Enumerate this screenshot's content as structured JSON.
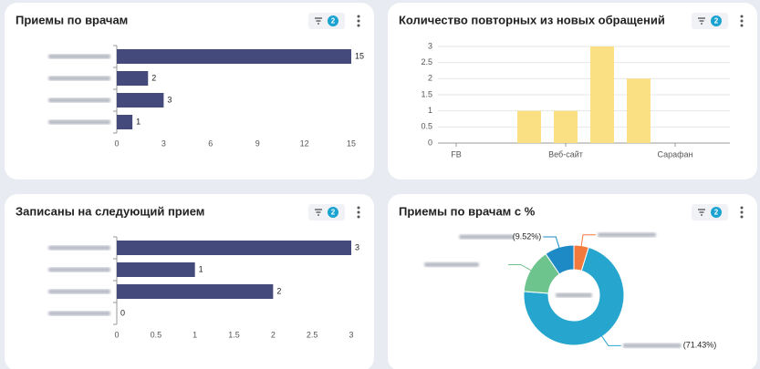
{
  "chart_data": [
    {
      "type": "bar",
      "orientation": "horizontal",
      "title": "Приемы по врачам",
      "filter_count": 2,
      "categories": [
        null,
        null,
        null,
        null
      ],
      "values": [
        15,
        2,
        3,
        1
      ],
      "color": "#454a7c",
      "xlim": [
        0,
        15
      ],
      "xticks": [
        0,
        3,
        6,
        9,
        12,
        15
      ],
      "grid": false
    },
    {
      "type": "bar",
      "orientation": "vertical",
      "title": "Количество повторных из новых обращений",
      "filter_count": 2,
      "categories": [
        "FB",
        null,
        null,
        "Веб-сайт",
        null,
        null,
        "Сарафан",
        null
      ],
      "values": [
        0,
        0,
        1,
        1,
        3,
        2,
        0,
        0
      ],
      "color": "#fbe083",
      "ylim": [
        0,
        3
      ],
      "yticks": [
        0,
        0.5,
        1,
        1.5,
        2,
        2.5,
        3
      ],
      "grid": true
    },
    {
      "type": "bar",
      "orientation": "horizontal",
      "title": "Записаны на следующий прием",
      "filter_count": 2,
      "categories": [
        null,
        null,
        null,
        null
      ],
      "values": [
        3,
        1,
        2,
        0
      ],
      "color": "#454a7c",
      "xlim": [
        0,
        3
      ],
      "xticks": [
        0,
        0.5,
        1,
        1.5,
        2,
        2.5,
        3
      ],
      "grid": false
    },
    {
      "type": "pie",
      "title": "Приемы по врачам с %",
      "filter_count": 2,
      "categories": [
        null,
        null,
        null,
        null
      ],
      "values": [
        71.43,
        14.29,
        9.52,
        4.76
      ],
      "value_labels": [
        "(71.43%)",
        null,
        "(9.52%)",
        null
      ],
      "colors": [
        "#26a6cf",
        "#6dc48d",
        "#1d8ac6",
        "#f37a3c"
      ],
      "donut": true
    }
  ]
}
